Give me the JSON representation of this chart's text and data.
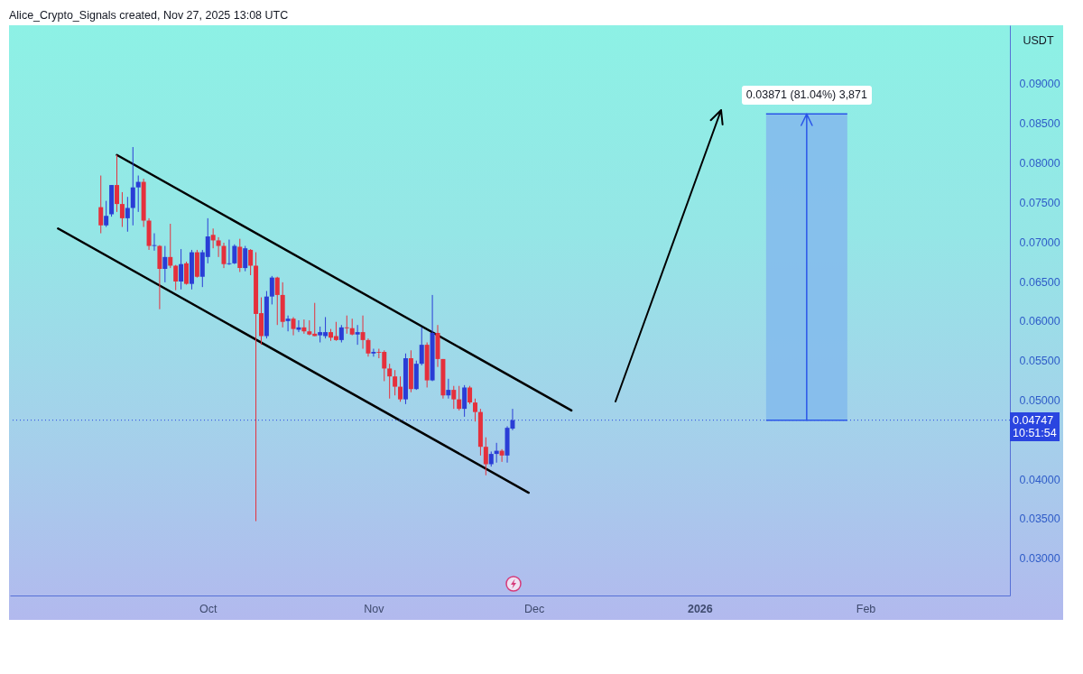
{
  "chart_data": {
    "type": "candlestick",
    "ylabel": "USDT",
    "annotations": [
      "Alice_Crypto_Signals created, Nov 27, 2025 13:08 UTC",
      "10:51:54"
    ],
    "x": [
      "2025-09-11",
      "2025-09-12",
      "2025-09-13",
      "2025-09-14",
      "2025-09-15",
      "2025-09-16",
      "2025-09-17",
      "2025-09-18",
      "2025-09-19",
      "2025-09-20",
      "2025-09-21",
      "2025-09-22",
      "2025-09-23",
      "2025-09-24",
      "2025-09-25",
      "2025-09-26",
      "2025-09-27",
      "2025-09-28",
      "2025-09-29",
      "2025-09-30",
      "2025-10-01",
      "2025-10-02",
      "2025-10-03",
      "2025-10-04",
      "2025-10-05",
      "2025-10-06",
      "2025-10-07",
      "2025-10-08",
      "2025-10-09",
      "2025-10-10",
      "2025-10-11",
      "2025-10-12",
      "2025-10-13",
      "2025-10-14",
      "2025-10-15",
      "2025-10-16",
      "2025-10-17",
      "2025-10-18",
      "2025-10-19",
      "2025-10-20",
      "2025-10-21",
      "2025-10-22",
      "2025-10-23",
      "2025-10-24",
      "2025-10-25",
      "2025-10-26",
      "2025-10-27",
      "2025-10-28",
      "2025-10-29",
      "2025-10-30",
      "2025-10-31",
      "2025-11-01",
      "2025-11-02",
      "2025-11-03",
      "2025-11-04",
      "2025-11-05",
      "2025-11-06",
      "2025-11-07",
      "2025-11-08",
      "2025-11-09",
      "2025-11-10",
      "2025-11-11",
      "2025-11-12",
      "2025-11-13",
      "2025-11-14",
      "2025-11-15",
      "2025-11-16",
      "2025-11-17",
      "2025-11-18",
      "2025-11-19",
      "2025-11-20",
      "2025-11-21",
      "2025-11-22",
      "2025-11-23",
      "2025-11-24",
      "2025-11-25",
      "2025-11-26",
      "2025-11-27"
    ],
    "ohlc": [
      [
        0.0744,
        0.0784,
        0.0711,
        0.0721
      ],
      [
        0.0721,
        0.0752,
        0.0719,
        0.0733
      ],
      [
        0.0735,
        0.0772,
        0.0732,
        0.0772
      ],
      [
        0.0772,
        0.081,
        0.0738,
        0.0748
      ],
      [
        0.0748,
        0.0763,
        0.0719,
        0.073
      ],
      [
        0.073,
        0.0757,
        0.0713,
        0.0743
      ],
      [
        0.0743,
        0.082,
        0.0721,
        0.0769
      ],
      [
        0.0769,
        0.0784,
        0.0738,
        0.0776
      ],
      [
        0.0776,
        0.078,
        0.0719,
        0.0727
      ],
      [
        0.0727,
        0.073,
        0.069,
        0.0695
      ],
      [
        0.0695,
        0.0711,
        0.0689,
        0.0696
      ],
      [
        0.0695,
        0.0696,
        0.0615,
        0.0666
      ],
      [
        0.0666,
        0.0695,
        0.0649,
        0.0681
      ],
      [
        0.0681,
        0.0723,
        0.0667,
        0.067
      ],
      [
        0.067,
        0.0671,
        0.0639,
        0.065
      ],
      [
        0.065,
        0.0691,
        0.064,
        0.0672
      ],
      [
        0.0673,
        0.0675,
        0.0646,
        0.0647
      ],
      [
        0.0647,
        0.069,
        0.064,
        0.0687
      ],
      [
        0.0687,
        0.069,
        0.0655,
        0.0656
      ],
      [
        0.0656,
        0.069,
        0.0643,
        0.0687
      ],
      [
        0.0681,
        0.073,
        0.0673,
        0.0707
      ],
      [
        0.0709,
        0.0717,
        0.0692,
        0.0702
      ],
      [
        0.0702,
        0.0706,
        0.0681,
        0.0695
      ],
      [
        0.0695,
        0.0699,
        0.0667,
        0.0672
      ],
      [
        0.0672,
        0.0703,
        0.0671,
        0.0673
      ],
      [
        0.0673,
        0.0697,
        0.0672,
        0.0695
      ],
      [
        0.0694,
        0.0704,
        0.0662,
        0.0667
      ],
      [
        0.0667,
        0.0695,
        0.0663,
        0.0692
      ],
      [
        0.069,
        0.0691,
        0.0658,
        0.067
      ],
      [
        0.067,
        0.0687,
        0.0347,
        0.0609
      ],
      [
        0.061,
        0.063,
        0.057,
        0.0581
      ],
      [
        0.0581,
        0.0638,
        0.0578,
        0.0631
      ],
      [
        0.0631,
        0.0657,
        0.0621,
        0.0655
      ],
      [
        0.0655,
        0.0656,
        0.0595,
        0.0633
      ],
      [
        0.0633,
        0.0649,
        0.0592,
        0.0599
      ],
      [
        0.06,
        0.0607,
        0.0587,
        0.0603
      ],
      [
        0.0603,
        0.0605,
        0.0582,
        0.059
      ],
      [
        0.0589,
        0.0601,
        0.0586,
        0.0592
      ],
      [
        0.0592,
        0.0602,
        0.0584,
        0.0587
      ],
      [
        0.0587,
        0.0601,
        0.0582,
        0.0583
      ],
      [
        0.0584,
        0.0623,
        0.0581,
        0.0581
      ],
      [
        0.0582,
        0.0593,
        0.0573,
        0.0586
      ],
      [
        0.0581,
        0.0605,
        0.0578,
        0.0586
      ],
      [
        0.0586,
        0.059,
        0.0575,
        0.0579
      ],
      [
        0.0581,
        0.0599,
        0.0575,
        0.0576
      ],
      [
        0.0576,
        0.0595,
        0.0573,
        0.0592
      ],
      [
        0.0592,
        0.0607,
        0.0584,
        0.0591
      ],
      [
        0.0591,
        0.0603,
        0.0582,
        0.0583
      ],
      [
        0.0583,
        0.0595,
        0.057,
        0.0586
      ],
      [
        0.0586,
        0.0607,
        0.0565,
        0.0576
      ],
      [
        0.0576,
        0.0578,
        0.0555,
        0.0559
      ],
      [
        0.0559,
        0.0565,
        0.0555,
        0.0561
      ],
      [
        0.0561,
        0.0565,
        0.0553,
        0.056
      ],
      [
        0.0561,
        0.0563,
        0.0524,
        0.054
      ],
      [
        0.054,
        0.0546,
        0.0502,
        0.053
      ],
      [
        0.053,
        0.0538,
        0.0506,
        0.0517
      ],
      [
        0.0517,
        0.053,
        0.0498,
        0.0501
      ],
      [
        0.0501,
        0.0559,
        0.0495,
        0.0553
      ],
      [
        0.0553,
        0.0563,
        0.051,
        0.0514
      ],
      [
        0.0514,
        0.055,
        0.0513,
        0.0546
      ],
      [
        0.0546,
        0.0592,
        0.0544,
        0.057
      ],
      [
        0.057,
        0.0573,
        0.0516,
        0.0525
      ],
      [
        0.0525,
        0.0633,
        0.0524,
        0.0585
      ],
      [
        0.0585,
        0.0595,
        0.0542,
        0.0552
      ],
      [
        0.0552,
        0.0552,
        0.0502,
        0.0506
      ],
      [
        0.0506,
        0.0527,
        0.0502,
        0.0513
      ],
      [
        0.0513,
        0.0518,
        0.0489,
        0.0501
      ],
      [
        0.0501,
        0.0518,
        0.0487,
        0.0489
      ],
      [
        0.0489,
        0.0519,
        0.0479,
        0.0516
      ],
      [
        0.0516,
        0.0518,
        0.0495,
        0.0497
      ],
      [
        0.0497,
        0.0502,
        0.0473,
        0.0485
      ],
      [
        0.0485,
        0.0489,
        0.043,
        0.0441
      ],
      [
        0.0441,
        0.0453,
        0.0405,
        0.0419
      ],
      [
        0.0419,
        0.0435,
        0.0416,
        0.0432
      ],
      [
        0.0432,
        0.0446,
        0.0421,
        0.0436
      ],
      [
        0.0436,
        0.0438,
        0.0422,
        0.043
      ],
      [
        0.043,
        0.0467,
        0.0421,
        0.0465
      ],
      [
        0.0464,
        0.0489,
        0.0462,
        0.04747
      ]
    ],
    "colors": [
      "#e5303c",
      "#2a3dd6",
      "#2a3dd6",
      "#e5303c",
      "#e5303c",
      "#2a3dd6",
      "#2a3dd6",
      "#2a3dd6",
      "#e5303c",
      "#e5303c",
      "#2a3dd6",
      "#e5303c",
      "#2a3dd6",
      "#e5303c",
      "#e5303c",
      "#2a3dd6",
      "#e5303c",
      "#2a3dd6",
      "#e5303c",
      "#2a3dd6",
      "#2a3dd6",
      "#e5303c",
      "#e5303c",
      "#e5303c",
      "#2a3dd6",
      "#2a3dd6",
      "#e5303c",
      "#2a3dd6",
      "#e5303c",
      "#e5303c",
      "#e5303c",
      "#2a3dd6",
      "#2a3dd6",
      "#e5303c",
      "#e5303c",
      "#2a3dd6",
      "#e5303c",
      "#2a3dd6",
      "#e5303c",
      "#e5303c",
      "#e5303c",
      "#2a3dd6",
      "#2a3dd6",
      "#e5303c",
      "#e5303c",
      "#2a3dd6",
      "#e5303c",
      "#e5303c",
      "#2a3dd6",
      "#e5303c",
      "#e5303c",
      "#2a3dd6",
      "#e5303c",
      "#e5303c",
      "#e5303c",
      "#e5303c",
      "#e5303c",
      "#2a3dd6",
      "#e5303c",
      "#2a3dd6",
      "#2a3dd6",
      "#e5303c",
      "#2a3dd6",
      "#e5303c",
      "#e5303c",
      "#2a3dd6",
      "#e5303c",
      "#e5303c",
      "#2a3dd6",
      "#e5303c",
      "#e5303c",
      "#e5303c",
      "#e5303c",
      "#2a3dd6",
      "#2a3dd6",
      "#e5303c",
      "#2a3dd6",
      "#2a3dd6"
    ],
    "series": [
      {
        "type": "line",
        "color": "#000000",
        "x": [
          "2025-09-14",
          "2025-12-08"
        ],
        "values": [
          0.081,
          0.0487
        ]
      },
      {
        "type": "line",
        "color": "#000000",
        "x": [
          "2025-09-03",
          "2025-11-30"
        ],
        "values": [
          0.0717,
          0.0383
        ]
      },
      {
        "type": "bar",
        "color": "#84bbec",
        "x": [
          "2026-01-21"
        ],
        "base": [
          0.04747
        ],
        "values": [
          0.03871
        ],
        "value_labels": [
          "0.03871 (81.04%) 3,871"
        ]
      }
    ],
    "xlim": [
      "2025-08-25",
      "2026-02-28"
    ],
    "xticks": [
      {
        "value": "2025-10-01",
        "label": "Oct"
      },
      {
        "value": "2025-11-01",
        "label": "Nov"
      },
      {
        "value": "2025-12-01",
        "label": "Dec"
      },
      {
        "value": "2026-01-01",
        "label": "2026"
      },
      {
        "value": "2026-02-01",
        "label": "Feb"
      }
    ],
    "ylim": [
      0.0253,
      0.0974
    ],
    "yticks": [
      {
        "value": 0.03,
        "label": "0.03000"
      },
      {
        "value": 0.035,
        "label": "0.03500"
      },
      {
        "value": 0.04,
        "label": "0.04000"
      },
      {
        "value": 0.05,
        "label": "0.05000"
      },
      {
        "value": 0.055,
        "label": "0.05500"
      },
      {
        "value": 0.06,
        "label": "0.06000"
      },
      {
        "value": 0.065,
        "label": "0.06500"
      },
      {
        "value": 0.07,
        "label": "0.07000"
      },
      {
        "value": 0.075,
        "label": "0.07500"
      },
      {
        "value": 0.08,
        "label": "0.08000"
      },
      {
        "value": 0.085,
        "label": "0.08500"
      },
      {
        "value": 0.09,
        "label": "0.09000"
      }
    ],
    "ref_lines": [
      {
        "axis": "y",
        "value": 0.04747,
        "label": "0.04747",
        "color": "#2a45e0",
        "line_style": "dotted"
      }
    ]
  }
}
